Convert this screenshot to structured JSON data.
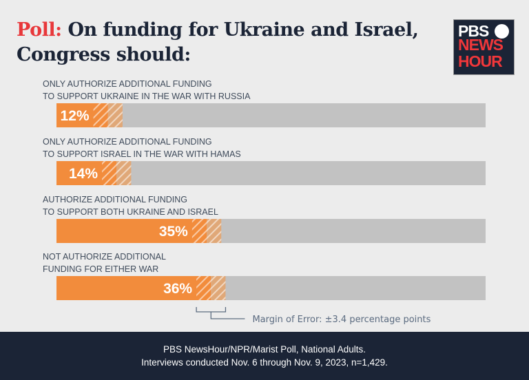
{
  "title": {
    "prefix": "Poll:",
    "line1": " On funding for Ukraine and Israel,",
    "line2": "Congress should:"
  },
  "logo": {
    "line1": "PBS",
    "line2": "NEWS",
    "line3": "HOUR"
  },
  "chart_data": {
    "type": "bar",
    "orientation": "horizontal",
    "categories": [
      [
        "ONLY AUTHORIZE ADDITIONAL FUNDING",
        "TO SUPPORT UKRAINE IN THE WAR WITH RUSSIA"
      ],
      [
        "ONLY AUTHORIZE ADDITIONAL FUNDING",
        "TO SUPPORT ISRAEL IN THE WAR WITH HAMAS"
      ],
      [
        "AUTHORIZE ADDITIONAL FUNDING",
        "TO SUPPORT BOTH UKRAINE AND ISRAEL"
      ],
      [
        "NOT AUTHORIZE ADDITIONAL",
        "FUNDING FOR EITHER WAR"
      ]
    ],
    "values": [
      12,
      14,
      35,
      36
    ],
    "value_labels": [
      "12%",
      "14%",
      "35%",
      "36%"
    ],
    "xlim": [
      0,
      100
    ],
    "margin_of_error": 3.4,
    "margin_label": "Margin of Error: ±3.4 percentage points",
    "colors": {
      "bar": "#f28c3c",
      "track": "#c2c2c2",
      "moe_light": "#e0a878"
    }
  },
  "footer": {
    "line1": "PBS NewsHour/NPR/Marist Poll, National Adults.",
    "line2": "Interviews conducted Nov. 6 through Nov. 9, 2023, n=1,429."
  }
}
